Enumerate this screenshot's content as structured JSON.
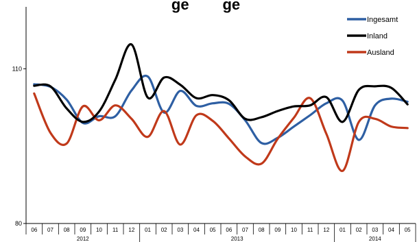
{
  "title_visible_fragment": "ge        ge",
  "chart_data": {
    "type": "line",
    "categories": [
      "06",
      "07",
      "08",
      "09",
      "10",
      "11",
      "12",
      "01",
      "02",
      "03",
      "04",
      "05",
      "06",
      "07",
      "08",
      "09",
      "10",
      "11",
      "12",
      "01",
      "02",
      "03",
      "04",
      "05"
    ],
    "years": [
      {
        "label": "2012",
        "start": 0,
        "end": 6
      },
      {
        "label": "2013",
        "start": 7,
        "end": 18
      },
      {
        "label": "2014",
        "start": 19,
        "end": 23
      }
    ],
    "ylim": [
      80,
      122
    ],
    "yticks": [
      80,
      110
    ],
    "legend_position": "top-right",
    "grid": false,
    "series": [
      {
        "name": "Ingesamt",
        "color": "#2e5fa3",
        "values": [
          107,
          106.5,
          104,
          99.5,
          100.8,
          100.8,
          105.8,
          108.5,
          101.5,
          105.7,
          102.8,
          103.3,
          103.2,
          100.0,
          95.6,
          96.6,
          98.8,
          101.0,
          103.3,
          103.8,
          96.2,
          102.9,
          104.2,
          103.6
        ]
      },
      {
        "name": "Inland",
        "color": "#000000",
        "values": [
          106.7,
          106.6,
          102.3,
          99.7,
          101.7,
          107.9,
          114.7,
          104.4,
          108.3,
          106.9,
          104.3,
          104.9,
          103.9,
          100.3,
          100.6,
          101.8,
          102.7,
          102.9,
          104.5,
          99.7,
          105.9,
          106.6,
          106.3,
          103.1
        ]
      },
      {
        "name": "Ausland",
        "color": "#c0391a",
        "values": [
          105.2,
          97.6,
          95.5,
          102.7,
          100.0,
          102.9,
          100.3,
          96.8,
          101.8,
          95.3,
          101.0,
          99.9,
          96.5,
          93.0,
          91.6,
          96.4,
          100.5,
          104.3,
          97.4,
          90.2,
          99.7,
          100.3,
          98.8,
          98.5
        ]
      }
    ]
  }
}
